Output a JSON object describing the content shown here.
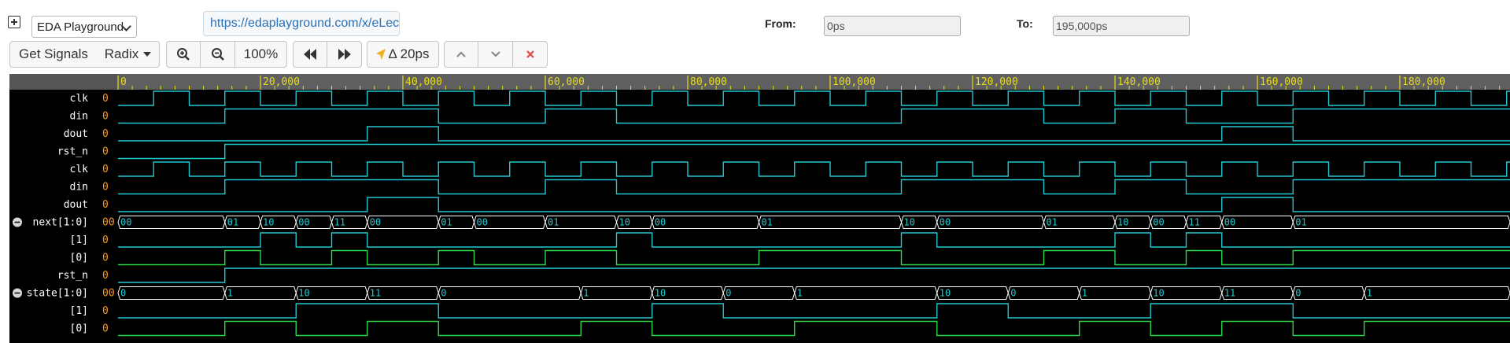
{
  "toolbar": {
    "playground": "EDA Playground",
    "url": "https://edaplayground.com/x/eLec",
    "from_label": "From:",
    "from_value": "0ps",
    "to_label": "To:",
    "to_value": "195,000ps",
    "get_signals": "Get Signals",
    "radix": "Radix",
    "zoom": "100%",
    "delta": "Δ 20ps"
  },
  "timeline": {
    "ticks": [
      "0",
      "20,000",
      "40,000",
      "60,000",
      "80,000",
      "100,000",
      "120,000",
      "140,000",
      "160,000",
      "180,000"
    ]
  },
  "signals": [
    {
      "name": "clk",
      "value": "0"
    },
    {
      "name": "din",
      "value": "0"
    },
    {
      "name": "dout",
      "value": "0"
    },
    {
      "name": "rst_n",
      "value": "0"
    },
    {
      "name": "clk",
      "value": "0"
    },
    {
      "name": "din",
      "value": "0"
    },
    {
      "name": "dout",
      "value": "0"
    },
    {
      "name": "next[1:0]",
      "value": "00"
    },
    {
      "name": "[1]",
      "value": "0"
    },
    {
      "name": "[0]",
      "value": "0"
    },
    {
      "name": "rst_n",
      "value": "0"
    },
    {
      "name": "state[1:0]",
      "value": "00"
    },
    {
      "name": "[1]",
      "value": "0"
    },
    {
      "name": "[0]",
      "value": "0"
    }
  ],
  "bus_next": {
    "times": [
      0,
      15000,
      20000,
      25000,
      30000,
      35000,
      45000,
      50000,
      60000,
      70000,
      75000,
      90000,
      110000,
      115000,
      130000,
      140000,
      145000,
      150000,
      155000,
      165000
    ],
    "labels": [
      "00",
      "01",
      "10",
      "00",
      "11",
      "00",
      "01",
      "00",
      "01",
      "10",
      "00",
      "01",
      "10",
      "00",
      "01",
      "10",
      "00",
      "11",
      "00",
      "01"
    ]
  },
  "bus_state": {
    "times": [
      0,
      15000,
      25000,
      35000,
      45000,
      65000,
      75000,
      85000,
      95000,
      115000,
      125000,
      135000,
      145000,
      155000,
      165000,
      175000
    ],
    "labels": [
      "0",
      "1",
      "10",
      "11",
      "0",
      "1",
      "10",
      "0",
      "1",
      "10",
      "0",
      "1",
      "10",
      "11",
      "0",
      "1"
    ]
  },
  "colors": {
    "trace_cyan": "#22c7cf",
    "trace_green": "#2bd84a",
    "tick_yellow": "#e8dc1c",
    "value_orange": "#ff9a1a",
    "close_red": "#e05555"
  }
}
